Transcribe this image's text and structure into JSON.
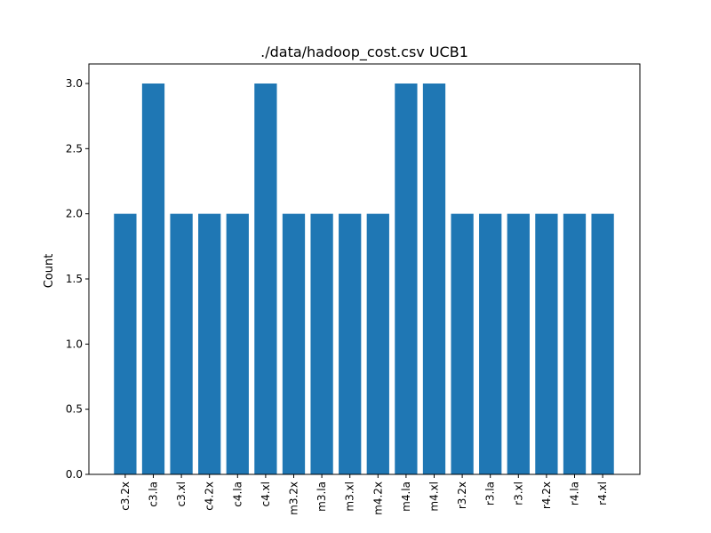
{
  "chart_data": {
    "type": "bar",
    "title": "./data/hadoop_cost.csv UCB1",
    "xlabel": "",
    "ylabel": "Count",
    "categories": [
      "c3.2x",
      "c3.la",
      "c3.xl",
      "c4.2x",
      "c4.la",
      "c4.xl",
      "m3.2x",
      "m3.la",
      "m3.xl",
      "m4.2x",
      "m4.la",
      "m4.xl",
      "r3.2x",
      "r3.la",
      "r3.xl",
      "r4.2x",
      "r4.la",
      "r4.xl"
    ],
    "values": [
      2,
      3,
      2,
      2,
      2,
      3,
      2,
      2,
      2,
      2,
      3,
      3,
      2,
      2,
      2,
      2,
      2,
      2
    ],
    "ylim": [
      0,
      3.15
    ],
    "yticks": [
      "0.0",
      "0.5",
      "1.0",
      "1.5",
      "2.0",
      "2.5",
      "3.0"
    ],
    "bar_color": "#1f77b4",
    "grid": false,
    "legend": "none"
  }
}
